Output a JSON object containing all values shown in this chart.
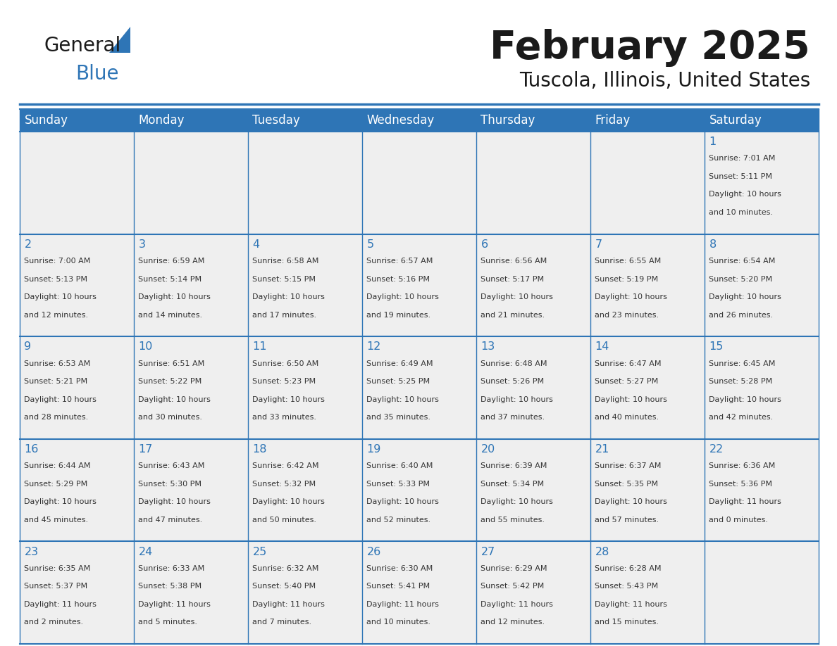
{
  "title": "February 2025",
  "subtitle": "Tuscola, Illinois, United States",
  "header_bg": "#2E75B6",
  "header_text": "#FFFFFF",
  "cell_bg_light": "#EFEFEF",
  "cell_bg_white": "#FFFFFF",
  "border_color": "#2E75B6",
  "day_headers": [
    "Sunday",
    "Monday",
    "Tuesday",
    "Wednesday",
    "Thursday",
    "Friday",
    "Saturday"
  ],
  "title_color": "#1a1a1a",
  "subtitle_color": "#1a1a1a",
  "number_color": "#2E75B6",
  "text_color": "#333333",
  "logo_general_color": "#1a1a1a",
  "logo_blue_color": "#2E75B6",
  "days": [
    {
      "day": 1,
      "col": 6,
      "row": 0,
      "sunrise": "7:01 AM",
      "sunset": "5:11 PM",
      "daylight": "10 hours and 10 minutes."
    },
    {
      "day": 2,
      "col": 0,
      "row": 1,
      "sunrise": "7:00 AM",
      "sunset": "5:13 PM",
      "daylight": "10 hours and 12 minutes."
    },
    {
      "day": 3,
      "col": 1,
      "row": 1,
      "sunrise": "6:59 AM",
      "sunset": "5:14 PM",
      "daylight": "10 hours and 14 minutes."
    },
    {
      "day": 4,
      "col": 2,
      "row": 1,
      "sunrise": "6:58 AM",
      "sunset": "5:15 PM",
      "daylight": "10 hours and 17 minutes."
    },
    {
      "day": 5,
      "col": 3,
      "row": 1,
      "sunrise": "6:57 AM",
      "sunset": "5:16 PM",
      "daylight": "10 hours and 19 minutes."
    },
    {
      "day": 6,
      "col": 4,
      "row": 1,
      "sunrise": "6:56 AM",
      "sunset": "5:17 PM",
      "daylight": "10 hours and 21 minutes."
    },
    {
      "day": 7,
      "col": 5,
      "row": 1,
      "sunrise": "6:55 AM",
      "sunset": "5:19 PM",
      "daylight": "10 hours and 23 minutes."
    },
    {
      "day": 8,
      "col": 6,
      "row": 1,
      "sunrise": "6:54 AM",
      "sunset": "5:20 PM",
      "daylight": "10 hours and 26 minutes."
    },
    {
      "day": 9,
      "col": 0,
      "row": 2,
      "sunrise": "6:53 AM",
      "sunset": "5:21 PM",
      "daylight": "10 hours and 28 minutes."
    },
    {
      "day": 10,
      "col": 1,
      "row": 2,
      "sunrise": "6:51 AM",
      "sunset": "5:22 PM",
      "daylight": "10 hours and 30 minutes."
    },
    {
      "day": 11,
      "col": 2,
      "row": 2,
      "sunrise": "6:50 AM",
      "sunset": "5:23 PM",
      "daylight": "10 hours and 33 minutes."
    },
    {
      "day": 12,
      "col": 3,
      "row": 2,
      "sunrise": "6:49 AM",
      "sunset": "5:25 PM",
      "daylight": "10 hours and 35 minutes."
    },
    {
      "day": 13,
      "col": 4,
      "row": 2,
      "sunrise": "6:48 AM",
      "sunset": "5:26 PM",
      "daylight": "10 hours and 37 minutes."
    },
    {
      "day": 14,
      "col": 5,
      "row": 2,
      "sunrise": "6:47 AM",
      "sunset": "5:27 PM",
      "daylight": "10 hours and 40 minutes."
    },
    {
      "day": 15,
      "col": 6,
      "row": 2,
      "sunrise": "6:45 AM",
      "sunset": "5:28 PM",
      "daylight": "10 hours and 42 minutes."
    },
    {
      "day": 16,
      "col": 0,
      "row": 3,
      "sunrise": "6:44 AM",
      "sunset": "5:29 PM",
      "daylight": "10 hours and 45 minutes."
    },
    {
      "day": 17,
      "col": 1,
      "row": 3,
      "sunrise": "6:43 AM",
      "sunset": "5:30 PM",
      "daylight": "10 hours and 47 minutes."
    },
    {
      "day": 18,
      "col": 2,
      "row": 3,
      "sunrise": "6:42 AM",
      "sunset": "5:32 PM",
      "daylight": "10 hours and 50 minutes."
    },
    {
      "day": 19,
      "col": 3,
      "row": 3,
      "sunrise": "6:40 AM",
      "sunset": "5:33 PM",
      "daylight": "10 hours and 52 minutes."
    },
    {
      "day": 20,
      "col": 4,
      "row": 3,
      "sunrise": "6:39 AM",
      "sunset": "5:34 PM",
      "daylight": "10 hours and 55 minutes."
    },
    {
      "day": 21,
      "col": 5,
      "row": 3,
      "sunrise": "6:37 AM",
      "sunset": "5:35 PM",
      "daylight": "10 hours and 57 minutes."
    },
    {
      "day": 22,
      "col": 6,
      "row": 3,
      "sunrise": "6:36 AM",
      "sunset": "5:36 PM",
      "daylight": "11 hours and 0 minutes."
    },
    {
      "day": 23,
      "col": 0,
      "row": 4,
      "sunrise": "6:35 AM",
      "sunset": "5:37 PM",
      "daylight": "11 hours and 2 minutes."
    },
    {
      "day": 24,
      "col": 1,
      "row": 4,
      "sunrise": "6:33 AM",
      "sunset": "5:38 PM",
      "daylight": "11 hours and 5 minutes."
    },
    {
      "day": 25,
      "col": 2,
      "row": 4,
      "sunrise": "6:32 AM",
      "sunset": "5:40 PM",
      "daylight": "11 hours and 7 minutes."
    },
    {
      "day": 26,
      "col": 3,
      "row": 4,
      "sunrise": "6:30 AM",
      "sunset": "5:41 PM",
      "daylight": "11 hours and 10 minutes."
    },
    {
      "day": 27,
      "col": 4,
      "row": 4,
      "sunrise": "6:29 AM",
      "sunset": "5:42 PM",
      "daylight": "11 hours and 12 minutes."
    },
    {
      "day": 28,
      "col": 5,
      "row": 4,
      "sunrise": "6:28 AM",
      "sunset": "5:43 PM",
      "daylight": "11 hours and 15 minutes."
    }
  ]
}
